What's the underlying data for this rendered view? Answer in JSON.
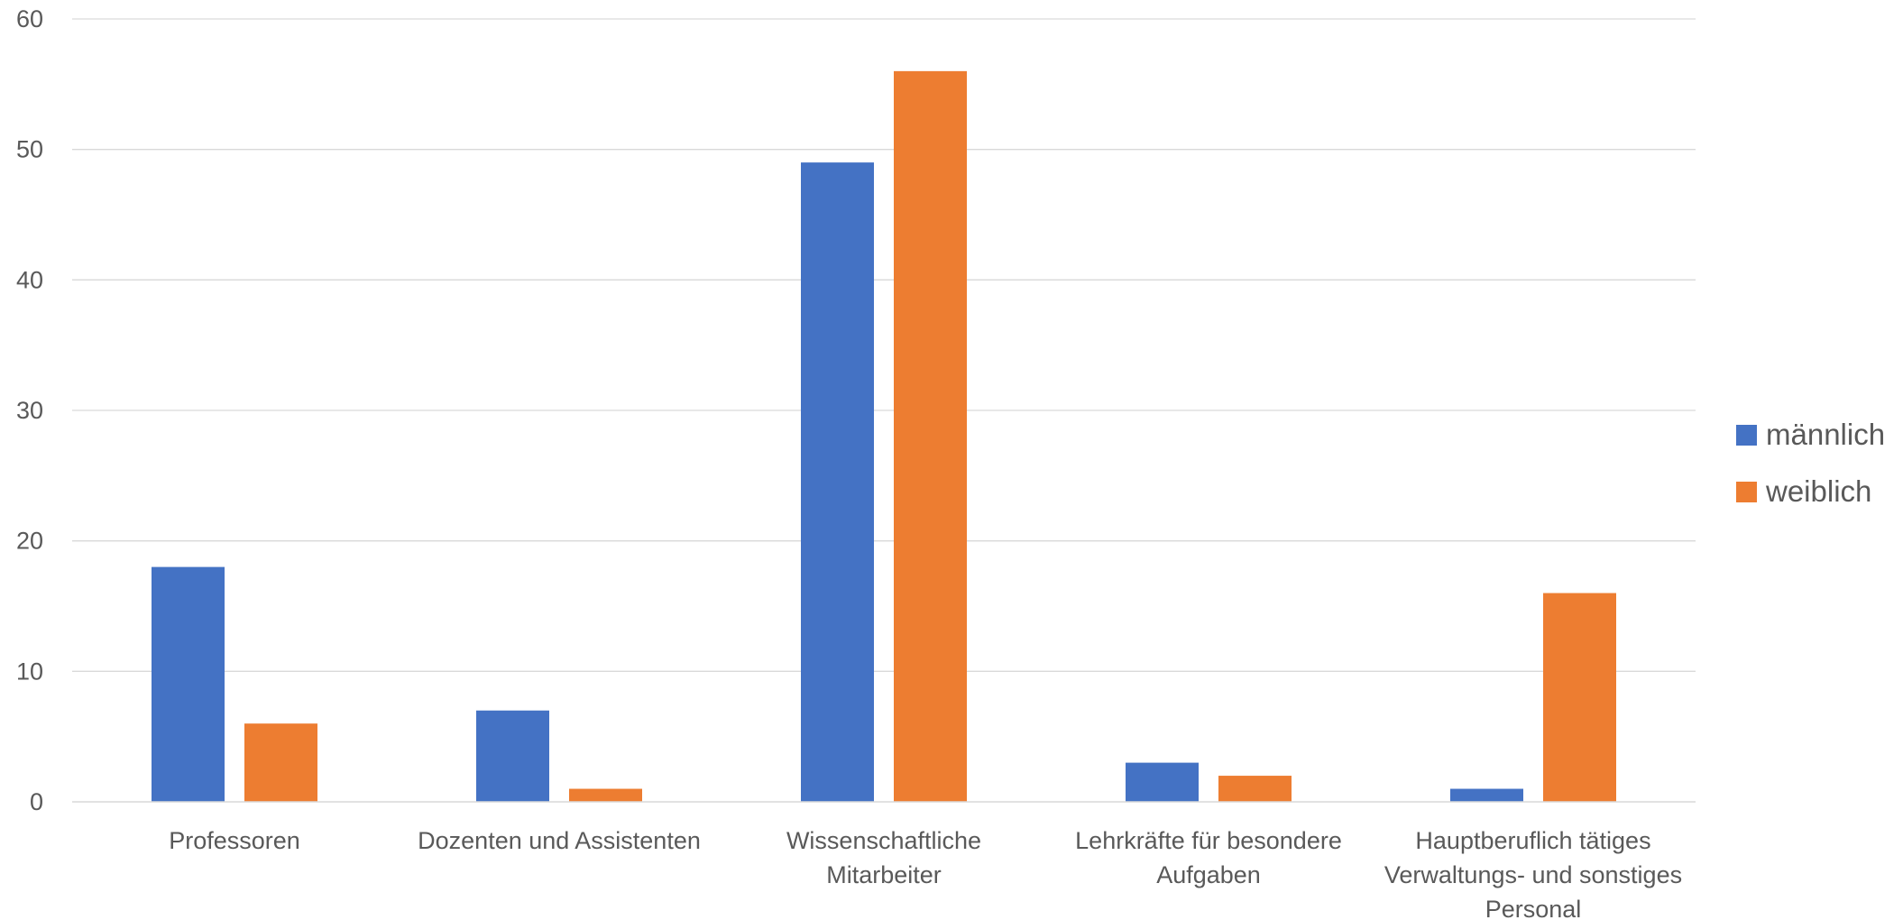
{
  "chart_data": {
    "type": "bar",
    "title": "",
    "xlabel": "",
    "ylabel": "",
    "ylim": [
      0,
      60
    ],
    "yticks": [
      0,
      10,
      20,
      30,
      40,
      50,
      60
    ],
    "grid": true,
    "legend_position": "right",
    "categories": [
      [
        "Professoren"
      ],
      [
        "Dozenten und Assistenten"
      ],
      [
        "Wissenschaftliche",
        "Mitarbeiter"
      ],
      [
        "Lehrkräfte für besondere",
        "Aufgaben"
      ],
      [
        "Hauptberuflich tätiges",
        "Verwaltungs- und sonstiges",
        "Personal"
      ]
    ],
    "series": [
      {
        "name": "männlich",
        "color": "#4472C4",
        "values": [
          18,
          7,
          49,
          3,
          1
        ]
      },
      {
        "name": "weiblich",
        "color": "#ED7D31",
        "values": [
          6,
          1,
          56,
          2,
          16
        ]
      }
    ],
    "colors": {
      "grid": "#d9d9d9",
      "axis": "#d9d9d9",
      "text": "#595959"
    }
  }
}
